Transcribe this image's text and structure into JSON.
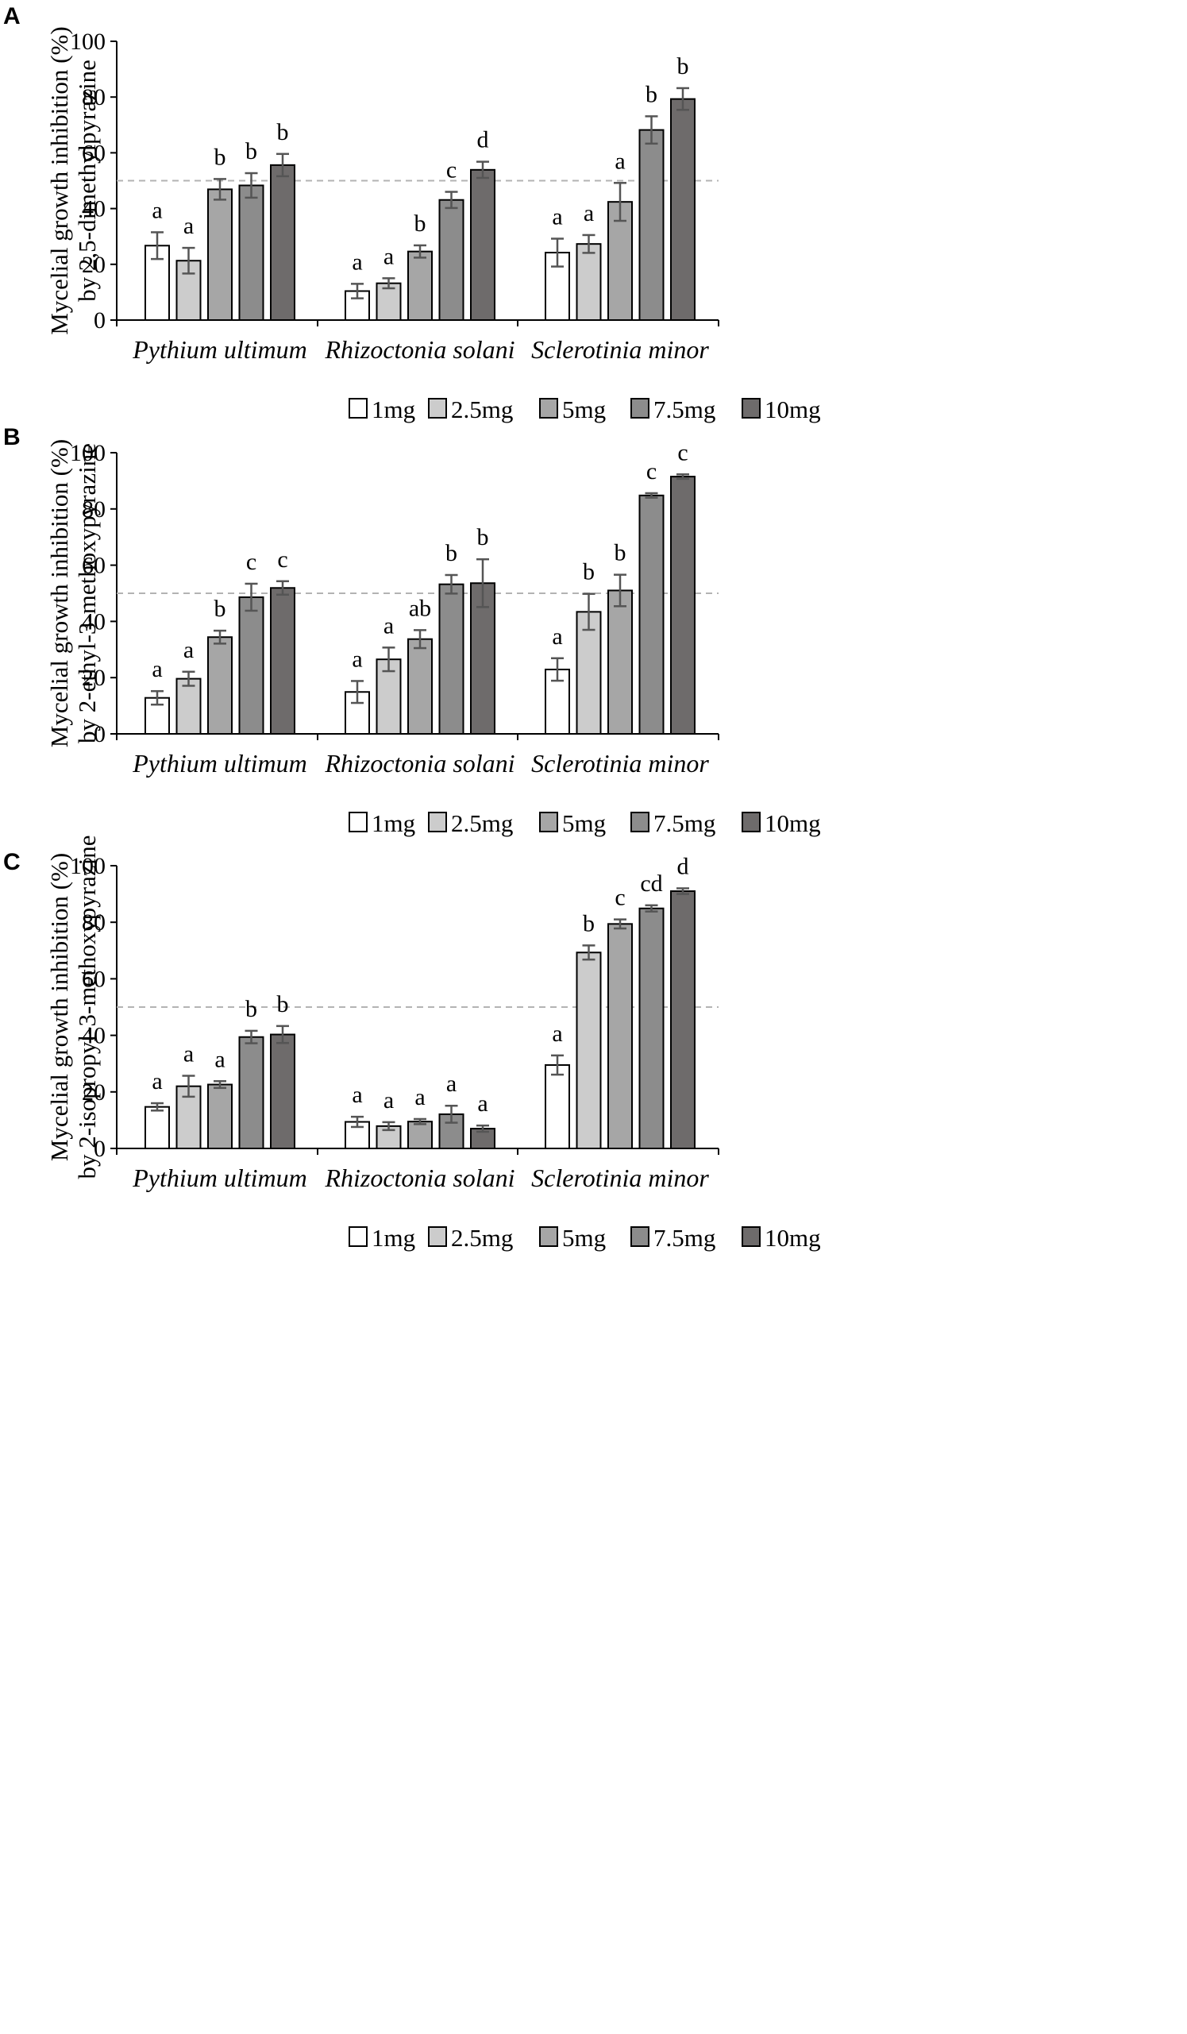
{
  "chart_data": [
    {
      "panel": "A",
      "type": "bar",
      "ylabel_line1": "Mycelial growth inhibition (%)",
      "ylabel_line2": "by 2,5-dimethylpyrazine",
      "ylim": [
        0,
        100
      ],
      "yticks": [
        "0",
        "20",
        "40",
        "60",
        "80",
        "100"
      ],
      "reference_line": 50,
      "categories": [
        "Pythium ultimum",
        "Rhizoctonia solani",
        "Sclerotinia minor"
      ],
      "series": [
        {
          "name": "1mg",
          "color": "#ffffff",
          "values": [
            26.7,
            10.4,
            24.2
          ],
          "errors": [
            4.8,
            2.6,
            5.0
          ],
          "labels": [
            "a",
            "a",
            "a"
          ]
        },
        {
          "name": "2.5mg",
          "color": "#cccccc",
          "values": [
            21.3,
            13.2,
            27.3
          ],
          "errors": [
            4.6,
            1.8,
            3.2
          ],
          "labels": [
            "a",
            "a",
            "a"
          ]
        },
        {
          "name": "5mg",
          "color": "#a6a6a6",
          "values": [
            46.9,
            24.6,
            42.4
          ],
          "errors": [
            3.7,
            2.2,
            6.8
          ],
          "labels": [
            "b",
            "b",
            "a"
          ]
        },
        {
          "name": "7.5mg",
          "color": "#8c8c8c",
          "values": [
            48.3,
            43.1,
            68.2
          ],
          "errors": [
            4.4,
            2.9,
            4.9
          ],
          "labels": [
            "b",
            "c",
            "b"
          ]
        },
        {
          "name": "10mg",
          "color": "#6e6b6b",
          "values": [
            55.6,
            53.9,
            79.3
          ],
          "errors": [
            4.0,
            2.9,
            3.9
          ],
          "labels": [
            "b",
            "d",
            "b"
          ]
        }
      ]
    },
    {
      "panel": "B",
      "type": "bar",
      "ylabel_line1": "Mycelial growth inhibition (%)",
      "ylabel_line2": "by 2-ethyl-3-methoxypyrazine",
      "ylim": [
        0,
        100
      ],
      "yticks": [
        "0",
        "20",
        "40",
        "60",
        "80",
        "100"
      ],
      "reference_line": 50,
      "categories": [
        "Pythium ultimum",
        "Rhizoctonia solani",
        "Sclerotinia minor"
      ],
      "series": [
        {
          "name": "1mg",
          "color": "#ffffff",
          "values": [
            12.8,
            14.9,
            22.9
          ],
          "errors": [
            2.4,
            3.9,
            4.0
          ],
          "labels": [
            "a",
            "a",
            "a"
          ]
        },
        {
          "name": "2.5mg",
          "color": "#cccccc",
          "values": [
            19.6,
            26.5,
            43.4
          ],
          "errors": [
            2.5,
            4.2,
            6.4
          ],
          "labels": [
            "a",
            "a",
            "b"
          ]
        },
        {
          "name": "5mg",
          "color": "#a6a6a6",
          "values": [
            34.4,
            33.7,
            51.0
          ],
          "errors": [
            2.3,
            3.2,
            5.6
          ],
          "labels": [
            "b",
            "ab",
            "b"
          ]
        },
        {
          "name": "7.5mg",
          "color": "#8c8c8c",
          "values": [
            48.6,
            53.2,
            84.8
          ],
          "errors": [
            4.8,
            3.3,
            0.8
          ],
          "labels": [
            "c",
            "b",
            "c"
          ]
        },
        {
          "name": "10mg",
          "color": "#6e6b6b",
          "values": [
            51.9,
            53.6,
            91.5
          ],
          "errors": [
            2.4,
            8.5,
            0.8
          ],
          "labels": [
            "c",
            "b",
            "c"
          ]
        }
      ]
    },
    {
      "panel": "C",
      "type": "bar",
      "ylabel_line1": "Mycelial growth inhibition (%)",
      "ylabel_line2": "by 2-isopropyl-3-methoxypyrazine",
      "ylim": [
        0,
        100
      ],
      "yticks": [
        "0",
        "20",
        "40",
        "60",
        "80",
        "100"
      ],
      "reference_line": 50,
      "categories": [
        "Pythium ultimum",
        "Rhizoctonia solani",
        "Sclerotinia minor"
      ],
      "series": [
        {
          "name": "1mg",
          "color": "#ffffff",
          "values": [
            14.7,
            9.4,
            29.5
          ],
          "errors": [
            1.3,
            1.8,
            3.4
          ],
          "labels": [
            "a",
            "a",
            "a"
          ]
        },
        {
          "name": "2.5mg",
          "color": "#cccccc",
          "values": [
            22.0,
            7.9,
            69.3
          ],
          "errors": [
            3.7,
            1.4,
            2.5
          ],
          "labels": [
            "a",
            "a",
            "b"
          ]
        },
        {
          "name": "5mg",
          "color": "#a6a6a6",
          "values": [
            22.6,
            9.5,
            79.4
          ],
          "errors": [
            1.2,
            0.9,
            1.6
          ],
          "labels": [
            "a",
            "a",
            "c"
          ]
        },
        {
          "name": "7.5mg",
          "color": "#8c8c8c",
          "values": [
            39.4,
            12.1,
            84.9
          ],
          "errors": [
            2.2,
            3.0,
            1.1
          ],
          "labels": [
            "b",
            "a",
            "cd"
          ]
        },
        {
          "name": "10mg",
          "color": "#6e6b6b",
          "values": [
            40.3,
            7.0,
            91.0
          ],
          "errors": [
            3.0,
            1.1,
            1.0
          ],
          "labels": [
            "b",
            "a",
            "d"
          ]
        }
      ]
    }
  ]
}
